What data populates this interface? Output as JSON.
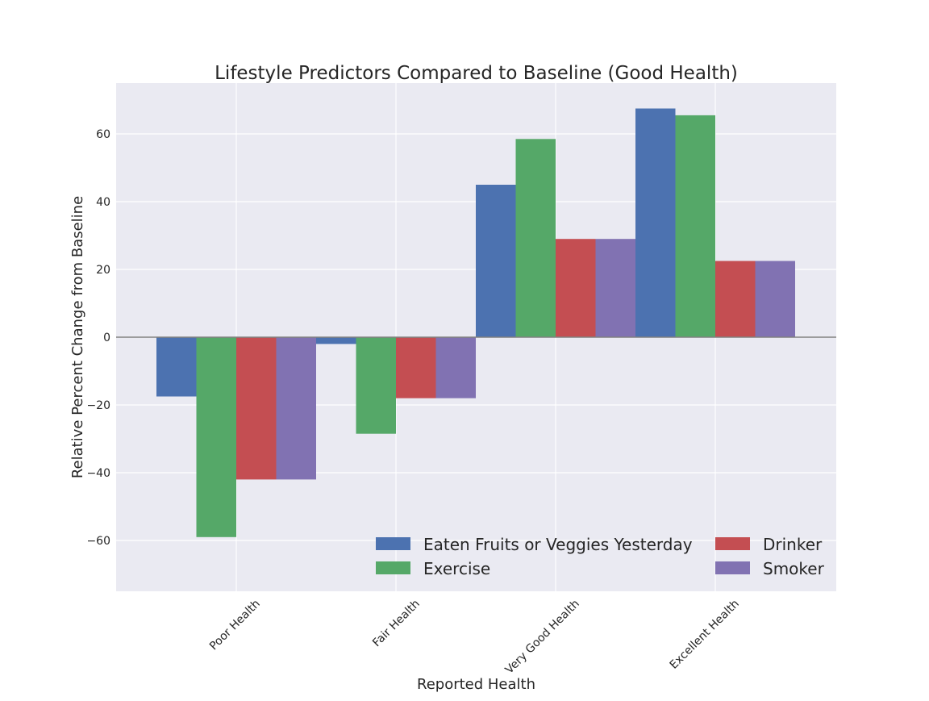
{
  "chart_data": {
    "type": "bar",
    "title": "Lifestyle Predictors Compared to Baseline (Good Health)",
    "xlabel": "Reported Health",
    "ylabel": "Relative Percent Change from Baseline",
    "categories": [
      "Poor Health",
      "Fair Health",
      "Very Good Health",
      "Excellent Health"
    ],
    "series": [
      {
        "name": "Eaten Fruits or Veggies Yesterday",
        "color": "#4c72b0",
        "values": [
          -17.5,
          -2,
          45,
          67.5
        ]
      },
      {
        "name": "Exercise",
        "color": "#55a868",
        "values": [
          -59,
          -28.5,
          58.5,
          65.5
        ]
      },
      {
        "name": "Drinker",
        "color": "#c44e52",
        "values": [
          -42,
          -18,
          29,
          22.5
        ]
      },
      {
        "name": "Smoker",
        "color": "#8172b2",
        "values": [
          -42,
          -18,
          29,
          22.5
        ]
      }
    ],
    "ylim": [
      -75,
      75
    ],
    "yticks": [
      -60,
      -40,
      -20,
      0,
      20,
      40,
      60
    ],
    "grid": true,
    "legend_placement": "lower right",
    "background_color": "#eaeaf2",
    "zero_line_color": "#808080"
  }
}
